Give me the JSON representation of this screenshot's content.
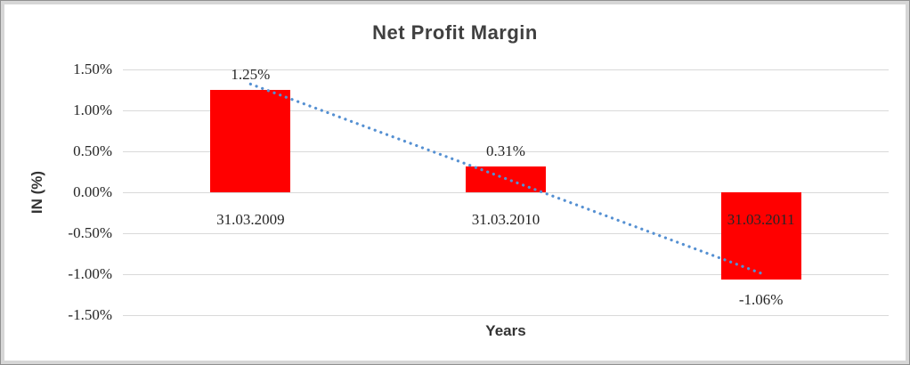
{
  "chart_data": {
    "type": "bar",
    "title": "Net Profit Margin",
    "xlabel": "Years",
    "ylabel": "IN (%)",
    "categories": [
      "31.03.2009",
      "31.03.2010",
      "31.03.2011"
    ],
    "values": [
      1.25,
      0.31,
      -1.06
    ],
    "data_labels": [
      "1.25%",
      "0.31%",
      "-1.06%"
    ],
    "ylim": [
      -1.5,
      1.5
    ],
    "yticks": [
      {
        "label": "1.50%",
        "value": 1.5
      },
      {
        "label": "1.00%",
        "value": 1.0
      },
      {
        "label": "0.50%",
        "value": 0.5
      },
      {
        "label": "0.00%",
        "value": 0.0
      },
      {
        "label": "-0.50%",
        "value": -0.5
      },
      {
        "label": "-1.00%",
        "value": -1.0
      },
      {
        "label": "-1.50%",
        "value": -1.5
      }
    ],
    "grid": true,
    "legend": "none",
    "bar_color": "#FF0000",
    "gridline_color": "#D9D9D9",
    "title_color": "#404040",
    "text_color": "#262626",
    "trendline": {
      "type": "linear",
      "style": "dotted",
      "color": "#5590D2"
    }
  }
}
